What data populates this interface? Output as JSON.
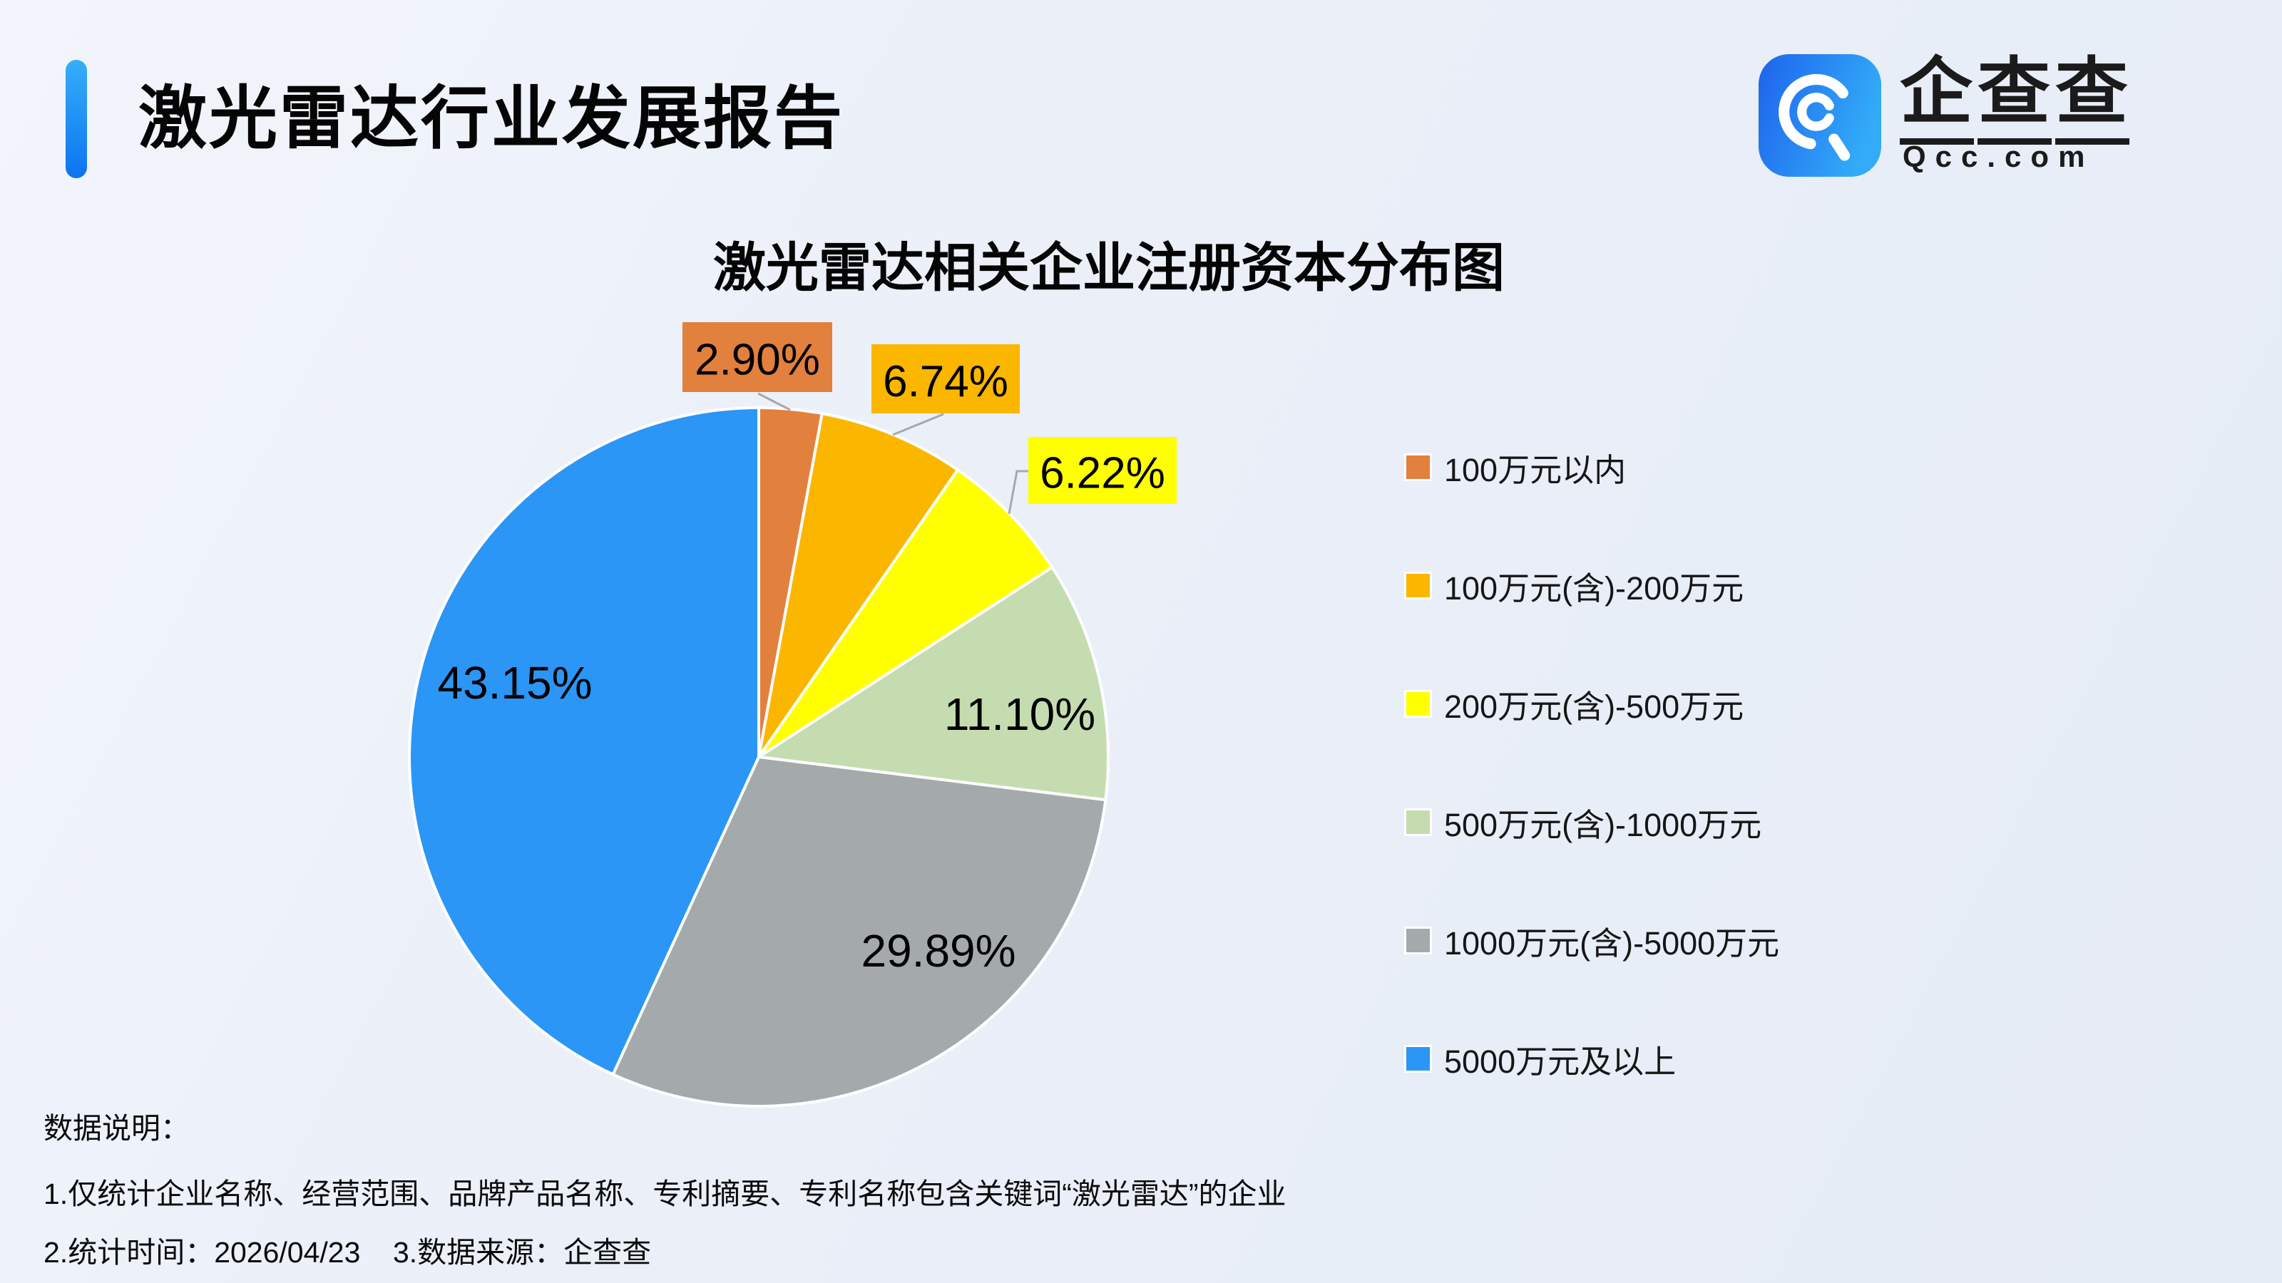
{
  "header": {
    "title": "激光雷达行业发展报告",
    "brand_name": "企查查",
    "brand_domain": "Qcc.com"
  },
  "chart_data": {
    "type": "pie",
    "title": "激光雷达相关企业注册资本分布图",
    "legend_position": "right",
    "unit": "percent",
    "series": [
      {
        "name": "100万元以内",
        "value": 2.9,
        "label": "2.90%",
        "color": "#E2803D"
      },
      {
        "name": "100万元(含)-200万元",
        "value": 6.74,
        "label": "6.74%",
        "color": "#FBB600"
      },
      {
        "name": "200万元(含)-500万元",
        "value": 6.22,
        "label": "6.22%",
        "color": "#FFFF00"
      },
      {
        "name": "500万元(含)-1000万元",
        "value": 11.1,
        "label": "11.10%",
        "color": "#C5DCB0"
      },
      {
        "name": "1000万元(含)-5000万元",
        "value": 29.89,
        "label": "29.89%",
        "color": "#A4A9AC"
      },
      {
        "name": "5000万元及以上",
        "value": 43.15,
        "label": "43.15%",
        "color": "#2B96F5"
      }
    ]
  },
  "footer": {
    "heading": "数据说明：",
    "note1": "1.仅统计企业名称、经营范围、品牌产品名称、专利摘要、专利名称包含关键词“激光雷达”的企业",
    "note2": "2.统计时间：2026/04/23    3.数据来源：企查查"
  },
  "colors": {
    "accent": "#1389FA",
    "label_line": "#A8A8A8",
    "label_text": "#000000"
  }
}
